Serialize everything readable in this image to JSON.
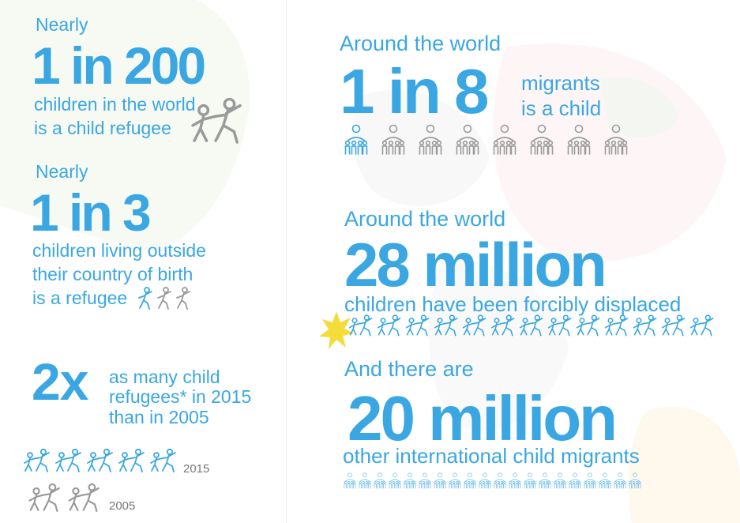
{
  "colors": {
    "blue": "#3aa7e2",
    "gray": "#9a9a9a",
    "yellow": "#f4dc3a"
  },
  "icons": {
    "child": "child-figure-icon",
    "family": "family-group-icon",
    "star": "starburst-icon"
  },
  "stat1": {
    "lead": "Nearly",
    "big": "1 in 200",
    "line1": "children in the world",
    "line2": "is a child refugee"
  },
  "stat2": {
    "lead": "Nearly",
    "big": "1 in 3",
    "line1": "children living outside",
    "line2": "their country of birth",
    "line3": "is a refugee"
  },
  "stat3": {
    "big": "2x",
    "line1": "as many child",
    "line2": "refugees* in 2015",
    "line3": "than in 2005",
    "year_a": "2015",
    "year_b": "2005",
    "count_a": 5,
    "count_b": 2
  },
  "stat4": {
    "lead": "Around the world",
    "big": "1 in 8",
    "line1": "migrants",
    "line2": "is a child",
    "highlighted": 1,
    "total": 8
  },
  "stat5": {
    "lead": "Around the world",
    "big": "28 million",
    "line1": "children have been forcibly displaced",
    "count": 13
  },
  "stat6": {
    "lead": "And there are",
    "big": "20 million",
    "line1": "other international child migrants",
    "count": 20
  }
}
